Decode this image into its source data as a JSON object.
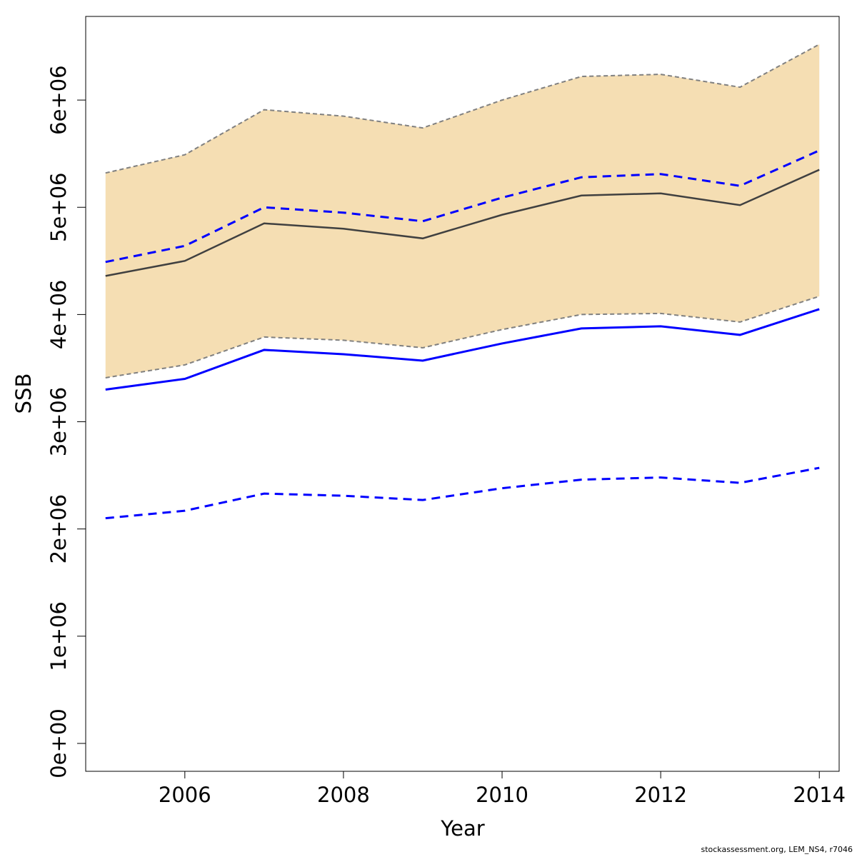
{
  "chart_data": {
    "type": "line",
    "xlabel": "Year",
    "ylabel": "SSB",
    "xlim": [
      2004.75,
      2014.25
    ],
    "ylim": [
      -260000,
      6780000
    ],
    "x_ticks": [
      2006,
      2008,
      2010,
      2012,
      2014
    ],
    "x_tick_labels": [
      "2006",
      "2008",
      "2010",
      "2012",
      "2014"
    ],
    "y_ticks": [
      0,
      1000000,
      2000000,
      3000000,
      4000000,
      5000000,
      6000000
    ],
    "y_tick_labels": [
      "0e+00",
      "1e+06",
      "2e+06",
      "3e+06",
      "4e+06",
      "5e+06",
      "6e+06"
    ],
    "x": [
      2005,
      2006,
      2007,
      2008,
      2009,
      2010,
      2011,
      2012,
      2013,
      2014
    ],
    "band": {
      "fill": "#F5DEB3",
      "border_color": "#808080",
      "lower": [
        3410000,
        3530000,
        3790000,
        3760000,
        3690000,
        3860000,
        4000000,
        4010000,
        3930000,
        4170000
      ],
      "upper": [
        5320000,
        5490000,
        5910000,
        5850000,
        5740000,
        6000000,
        6220000,
        6240000,
        6120000,
        6520000
      ]
    },
    "series": [
      {
        "values": [
          4360000,
          4500000,
          4850000,
          4800000,
          4710000,
          4930000,
          5110000,
          5130000,
          5020000,
          5350000
        ],
        "color": "#404040",
        "style": "solid"
      },
      {
        "values": [
          4490000,
          4640000,
          5000000,
          4950000,
          4870000,
          5090000,
          5280000,
          5310000,
          5200000,
          5530000
        ],
        "color": "#0000FF",
        "style": "dashed"
      },
      {
        "values": [
          3300000,
          3400000,
          3670000,
          3630000,
          3570000,
          3730000,
          3870000,
          3890000,
          3810000,
          4050000
        ],
        "color": "#0000FF",
        "style": "solid"
      },
      {
        "values": [
          2100000,
          2170000,
          2330000,
          2310000,
          2270000,
          2380000,
          2460000,
          2480000,
          2430000,
          2570000
        ],
        "color": "#0000FF",
        "style": "dashed"
      }
    ]
  },
  "credit": "stockassessment.org, LEM_NS4, r7046"
}
